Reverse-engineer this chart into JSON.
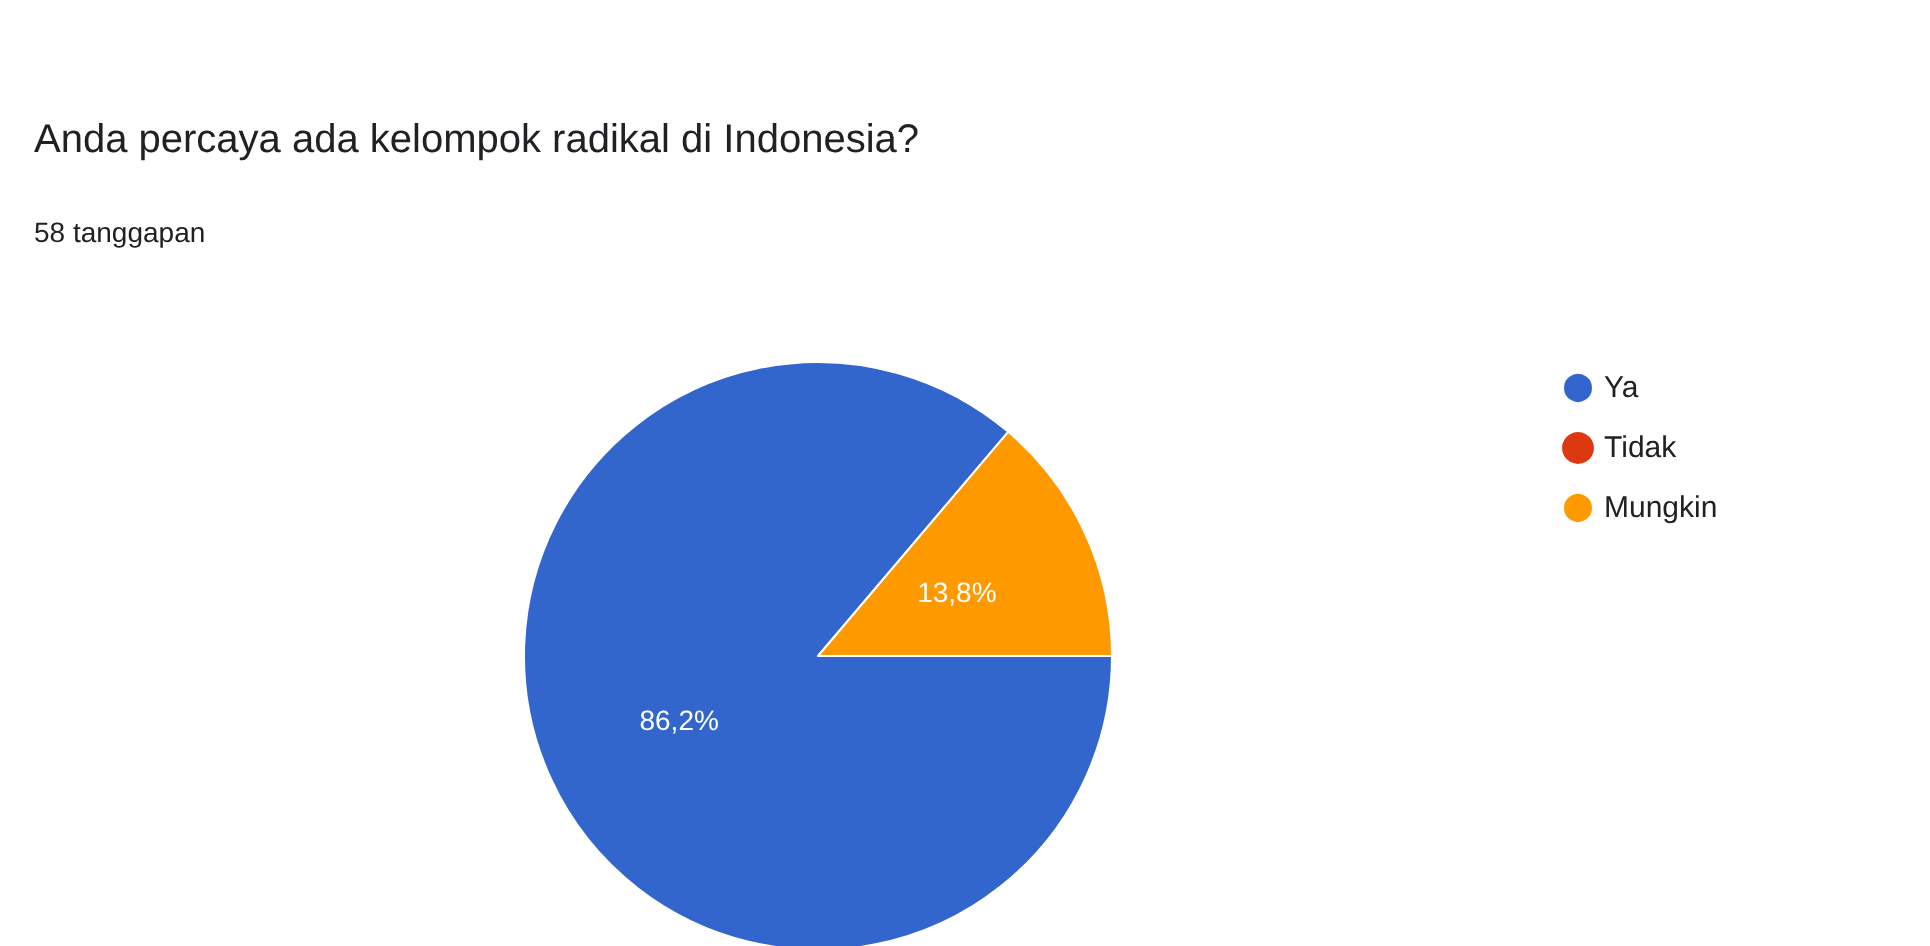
{
  "chart_data": {
    "type": "pie",
    "title": "Anda percaya ada kelompok radikal di Indonesia?",
    "subtitle": "58 tanggapan",
    "categories": [
      "Ya",
      "Tidak",
      "Mungkin"
    ],
    "values": [
      86.2,
      0,
      13.8
    ],
    "colors": [
      "#3366cc",
      "#dc3912",
      "#ff9900"
    ],
    "value_labels": [
      "86,2%",
      null,
      "13,8%"
    ],
    "legend": "top right"
  }
}
